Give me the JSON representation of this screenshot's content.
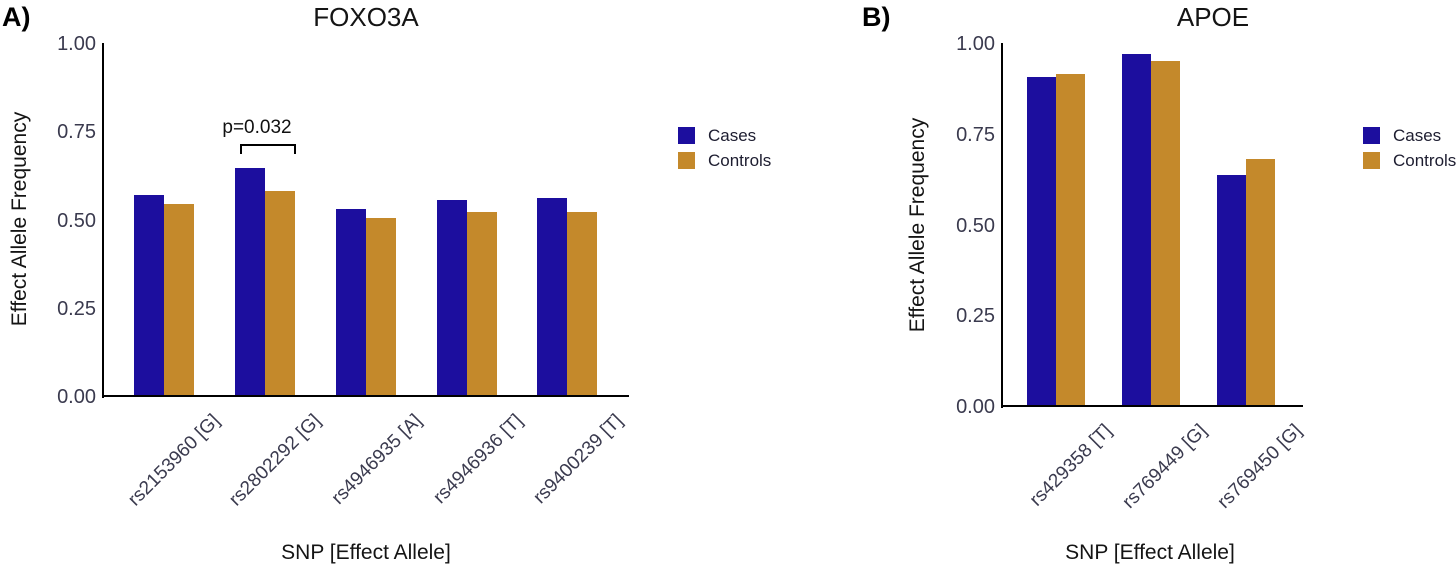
{
  "colors": {
    "cases": "#1c0e9e",
    "controls": "#c4892b",
    "axis": "#000000",
    "tick_text": "#3a3a4e",
    "title_text": "#141414"
  },
  "chart_data": [
    {
      "type": "bar",
      "panel_label": "A)",
      "title": "FOXO3A",
      "xlabel": "SNP [Effect Allele]",
      "ylabel": "Effect Allele Frequency",
      "ylim": [
        0,
        1
      ],
      "grid": false,
      "ytick_labels": [
        "1.00",
        "0.75",
        "0.50",
        "0.25",
        "0.00"
      ],
      "ytick_values": [
        1.0,
        0.75,
        0.5,
        0.25,
        0.0
      ],
      "categories": [
        "rs2153960 [G]",
        "rs2802292 [G]",
        "rs4946935 [A]",
        "rs4946936 [T]",
        "rs9400239 [T]"
      ],
      "series": [
        {
          "name": "Cases",
          "color": "#1c0e9e",
          "values": [
            0.57,
            0.645,
            0.53,
            0.555,
            0.56
          ]
        },
        {
          "name": "Controls",
          "color": "#c4892b",
          "values": [
            0.545,
            0.58,
            0.505,
            0.52,
            0.52
          ]
        }
      ],
      "annotation": {
        "text": "p=0.032",
        "category": "rs2802292 [G]"
      },
      "legend": {
        "items": [
          "Cases",
          "Controls"
        ],
        "position": "right"
      }
    },
    {
      "type": "bar",
      "panel_label": "B)",
      "title": "APOE",
      "xlabel": "SNP [Effect Allele]",
      "ylabel": "Effect Allele Frequency",
      "ylim": [
        0,
        1
      ],
      "grid": false,
      "ytick_labels": [
        "1.00",
        "0.75",
        "0.50",
        "0.25",
        "0.00"
      ],
      "ytick_values": [
        1.0,
        0.75,
        0.5,
        0.25,
        0.0
      ],
      "categories": [
        "rs429358 [T]",
        "rs769449 [G]",
        "rs769450 [G]"
      ],
      "series": [
        {
          "name": "Cases",
          "color": "#1c0e9e",
          "values": [
            0.905,
            0.97,
            0.635
          ]
        },
        {
          "name": "Controls",
          "color": "#c4892b",
          "values": [
            0.915,
            0.95,
            0.68
          ]
        }
      ],
      "legend": {
        "items": [
          "Cases",
          "Controls"
        ],
        "position": "right"
      }
    }
  ]
}
